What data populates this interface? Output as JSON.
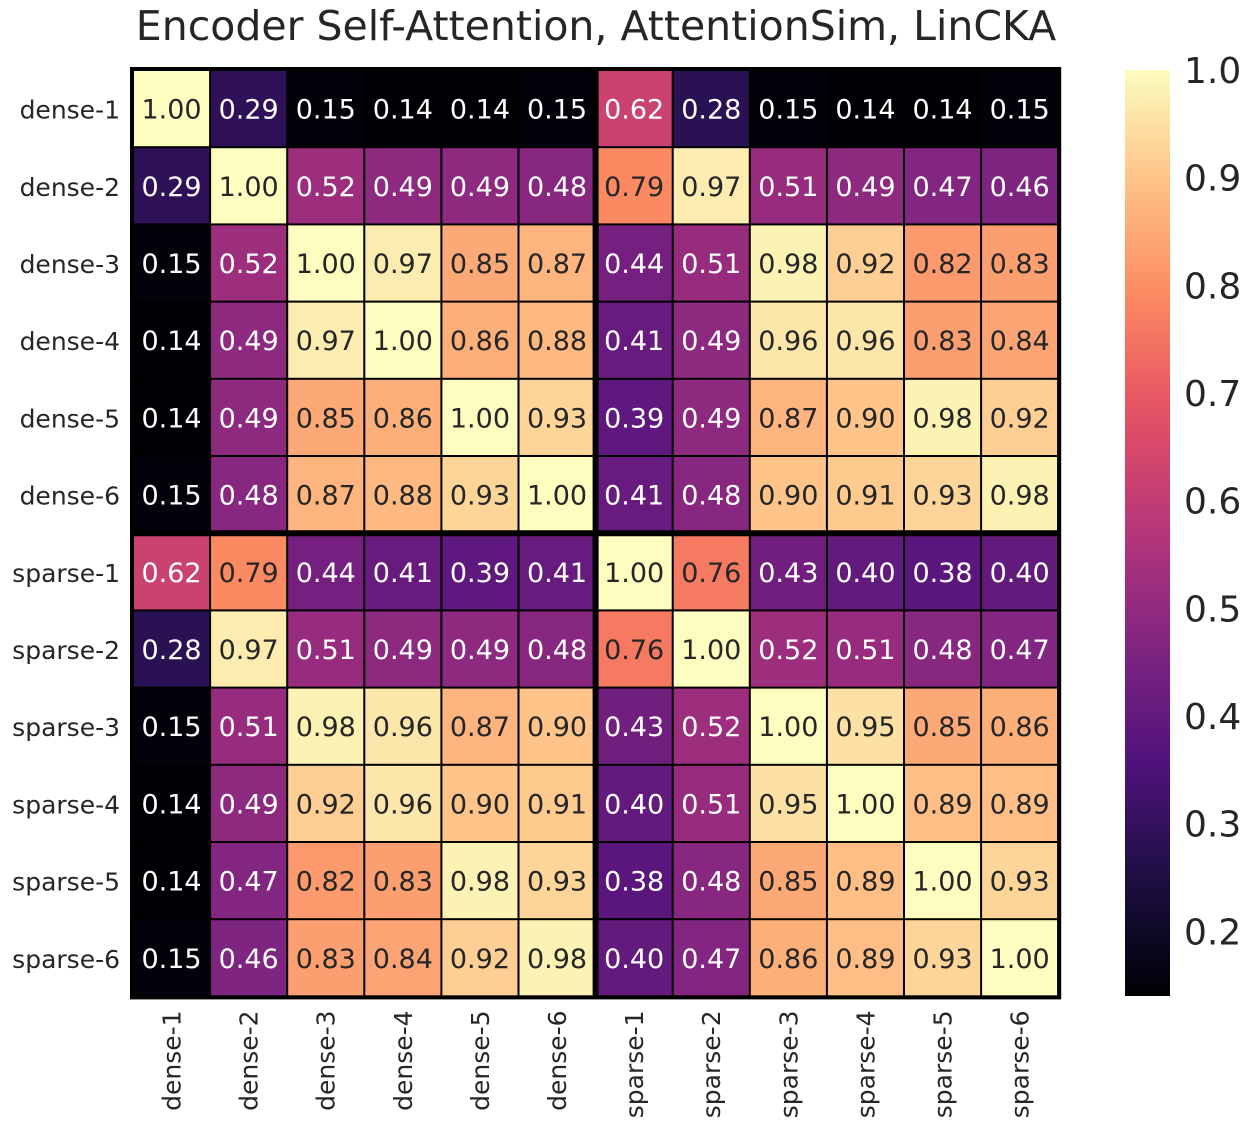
{
  "chart_data": {
    "type": "heatmap",
    "title": "Encoder Self-Attention, AttentionSim, LinCKA",
    "row_labels": [
      "dense-1",
      "dense-2",
      "dense-3",
      "dense-4",
      "dense-5",
      "dense-6",
      "sparse-1",
      "sparse-2",
      "sparse-3",
      "sparse-4",
      "sparse-5",
      "sparse-6"
    ],
    "col_labels": [
      "dense-1",
      "dense-2",
      "dense-3",
      "dense-4",
      "dense-5",
      "dense-6",
      "sparse-1",
      "sparse-2",
      "sparse-3",
      "sparse-4",
      "sparse-5",
      "sparse-6"
    ],
    "values": [
      [
        1.0,
        0.29,
        0.15,
        0.14,
        0.14,
        0.15,
        0.62,
        0.28,
        0.15,
        0.14,
        0.14,
        0.15
      ],
      [
        0.29,
        1.0,
        0.52,
        0.49,
        0.49,
        0.48,
        0.79,
        0.97,
        0.51,
        0.49,
        0.47,
        0.46
      ],
      [
        0.15,
        0.52,
        1.0,
        0.97,
        0.85,
        0.87,
        0.44,
        0.51,
        0.98,
        0.92,
        0.82,
        0.83
      ],
      [
        0.14,
        0.49,
        0.97,
        1.0,
        0.86,
        0.88,
        0.41,
        0.49,
        0.96,
        0.96,
        0.83,
        0.84
      ],
      [
        0.14,
        0.49,
        0.85,
        0.86,
        1.0,
        0.93,
        0.39,
        0.49,
        0.87,
        0.9,
        0.98,
        0.92
      ],
      [
        0.15,
        0.48,
        0.87,
        0.88,
        0.93,
        1.0,
        0.41,
        0.48,
        0.9,
        0.91,
        0.93,
        0.98
      ],
      [
        0.62,
        0.79,
        0.44,
        0.41,
        0.39,
        0.41,
        1.0,
        0.76,
        0.43,
        0.4,
        0.38,
        0.4
      ],
      [
        0.28,
        0.97,
        0.51,
        0.49,
        0.49,
        0.48,
        0.76,
        1.0,
        0.52,
        0.51,
        0.48,
        0.47
      ],
      [
        0.15,
        0.51,
        0.98,
        0.96,
        0.87,
        0.9,
        0.43,
        0.52,
        1.0,
        0.95,
        0.85,
        0.86
      ],
      [
        0.14,
        0.49,
        0.92,
        0.96,
        0.9,
        0.91,
        0.4,
        0.51,
        0.95,
        1.0,
        0.89,
        0.89
      ],
      [
        0.14,
        0.47,
        0.82,
        0.83,
        0.98,
        0.93,
        0.38,
        0.48,
        0.85,
        0.89,
        1.0,
        0.93
      ],
      [
        0.15,
        0.46,
        0.83,
        0.84,
        0.92,
        0.98,
        0.4,
        0.47,
        0.86,
        0.89,
        0.93,
        1.0
      ]
    ],
    "value_format": "2 decimals",
    "colormap": "magma",
    "vmin": 0.14,
    "vmax": 1.0,
    "colorbar_ticks": [
      "0.2",
      "0.3",
      "0.4",
      "0.5",
      "0.6",
      "0.7",
      "0.8",
      "0.9",
      "1.0"
    ],
    "annotated": true,
    "group_separators": "between dense-6 and sparse-1 on both axes"
  }
}
